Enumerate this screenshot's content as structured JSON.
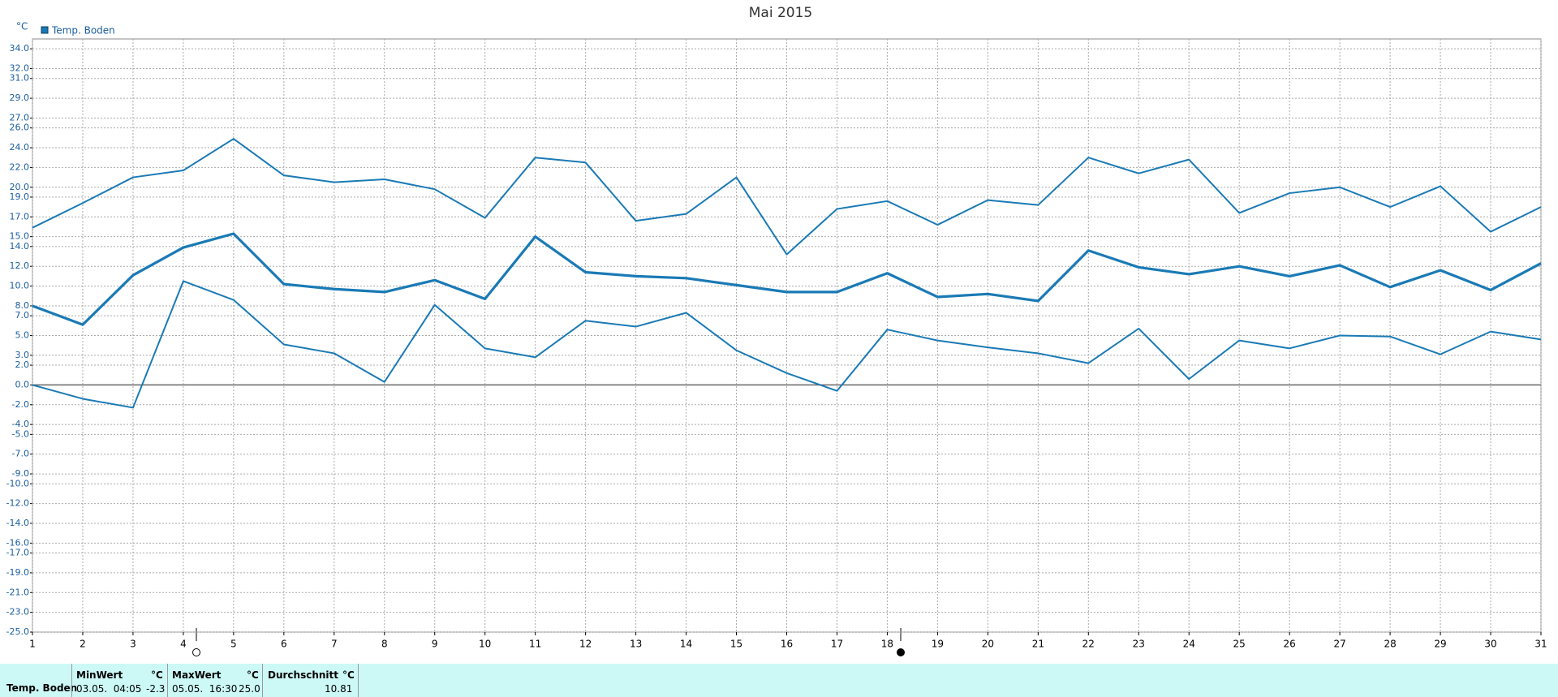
{
  "chart_data": {
    "type": "line",
    "title": "Mai 2015",
    "y_unit": "°C",
    "x": [
      1,
      2,
      3,
      4,
      5,
      6,
      7,
      8,
      9,
      10,
      11,
      12,
      13,
      14,
      15,
      16,
      17,
      18,
      19,
      20,
      21,
      22,
      23,
      24,
      25,
      26,
      27,
      28,
      29,
      30,
      31
    ],
    "xlim": [
      1,
      31
    ],
    "ylim": [
      -25,
      35
    ],
    "yticks": [
      {
        "value": 34,
        "label": "34.0"
      },
      {
        "value": 32,
        "label": "32.0"
      },
      {
        "value": 31,
        "label": "31.0"
      },
      {
        "value": 29,
        "label": "29.0"
      },
      {
        "value": 27,
        "label": "27.0"
      },
      {
        "value": 26,
        "label": "26.0"
      },
      {
        "value": 24,
        "label": "24.0"
      },
      {
        "value": 22,
        "label": "22.0"
      },
      {
        "value": 20,
        "label": "20.0"
      },
      {
        "value": 19,
        "label": "19.0"
      },
      {
        "value": 17,
        "label": "17.0"
      },
      {
        "value": 15,
        "label": "15.0"
      },
      {
        "value": 14,
        "label": "14.0"
      },
      {
        "value": 12,
        "label": "12.0"
      },
      {
        "value": 10,
        "label": "10.0"
      },
      {
        "value": 8,
        "label": "8.0"
      },
      {
        "value": 7,
        "label": "7.0"
      },
      {
        "value": 5,
        "label": "5.0"
      },
      {
        "value": 3,
        "label": "3.0"
      },
      {
        "value": 2,
        "label": "2.0"
      },
      {
        "value": 0,
        "label": "0.0"
      },
      {
        "value": -2,
        "label": "-2.0"
      },
      {
        "value": -4,
        "label": "-4.0"
      },
      {
        "value": -5,
        "label": "-5.0"
      },
      {
        "value": -7,
        "label": "-7.0"
      },
      {
        "value": -9,
        "label": "-9.0"
      },
      {
        "value": -10,
        "label": "-10.0"
      },
      {
        "value": -12,
        "label": "-12.0"
      },
      {
        "value": -14,
        "label": "-14.0"
      },
      {
        "value": -16,
        "label": "-16.0"
      },
      {
        "value": -17,
        "label": "-17.0"
      },
      {
        "value": -19,
        "label": "-19.0"
      },
      {
        "value": -21,
        "label": "-21.0"
      },
      {
        "value": -23,
        "label": "-23.0"
      },
      {
        "value": -25,
        "label": "-25.0"
      }
    ],
    "grid": true,
    "series": [
      {
        "name": "Temp. Boden",
        "color": "#1a7ab5",
        "max": [
          15.9,
          18.4,
          21.0,
          21.7,
          24.9,
          21.2,
          20.5,
          20.8,
          19.8,
          16.9,
          23.0,
          22.5,
          16.6,
          17.3,
          21.0,
          13.2,
          17.8,
          18.6,
          16.2,
          18.7,
          18.2,
          23.0,
          21.4,
          22.8,
          17.4,
          19.4,
          20.0,
          18.0,
          20.1,
          15.5,
          18.0
        ],
        "mean": [
          8.0,
          6.1,
          11.1,
          13.9,
          15.3,
          10.2,
          9.7,
          9.4,
          10.6,
          8.7,
          15.0,
          11.4,
          11.0,
          10.8,
          10.1,
          9.4,
          9.4,
          11.3,
          8.9,
          9.2,
          8.5,
          13.6,
          11.9,
          11.2,
          12.0,
          11.0,
          12.1,
          9.9,
          11.6,
          9.6,
          12.3
        ],
        "min": [
          0.0,
          -1.4,
          -2.3,
          10.5,
          8.6,
          4.1,
          3.2,
          0.3,
          8.1,
          3.7,
          2.8,
          6.5,
          5.9,
          7.3,
          3.5,
          1.2,
          -0.6,
          5.6,
          4.5,
          3.8,
          3.2,
          2.2,
          5.7,
          0.6,
          4.5,
          3.7,
          5.0,
          4.9,
          3.1,
          5.4,
          4.6
        ]
      }
    ]
  },
  "stats": {
    "min_header": "MinWert",
    "min_unit": "°C",
    "min_time": "03.05.  04:05",
    "min_value": "-2.3",
    "max_header": "MaxWert",
    "max_unit": "°C",
    "max_time": "05.05.  16:30",
    "max_value": "25.0",
    "avg_header": "Durchschnitt",
    "avg_unit": "°C",
    "avg_value": "10.81"
  }
}
